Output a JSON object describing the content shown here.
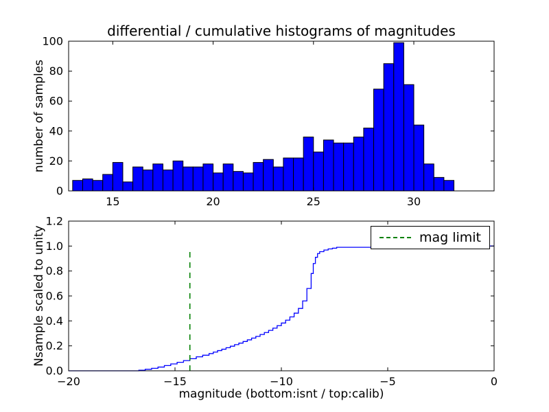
{
  "figure": {
    "background": "#ffffff"
  },
  "chart_data": [
    {
      "type": "bar",
      "title": "differential / cumulative histograms of magnitudes",
      "ylabel": "number of samples",
      "xlabel": "",
      "bar_color": "#0000ff",
      "bar_edge_color": "#000000",
      "bin_start": 13.0,
      "bin_width": 0.5,
      "values": [
        7,
        8,
        7,
        11,
        19,
        6,
        16,
        14,
        18,
        14,
        20,
        16,
        16,
        18,
        12,
        18,
        13,
        12,
        19,
        21,
        16,
        22,
        22,
        36,
        26,
        34,
        32,
        32,
        36,
        42,
        68,
        85,
        99,
        71,
        44,
        18,
        9,
        7
      ],
      "xlim": [
        12.8,
        34.0
      ],
      "ylim": [
        0,
        100
      ],
      "grid": false,
      "xticks": {
        "values": [
          15,
          20,
          25,
          30
        ],
        "labels": [
          "15",
          "20",
          "25",
          "30"
        ]
      },
      "yticks": {
        "values": [
          0,
          20,
          40,
          60,
          80,
          100
        ],
        "labels": [
          "0",
          "20",
          "40",
          "60",
          "80",
          "100"
        ]
      }
    },
    {
      "type": "line",
      "title": "",
      "ylabel": "Nsample scaled to unity",
      "xlabel": "magnitude (bottom:isnt / top:calib)",
      "line_color": "#0000ff",
      "xlim": [
        -20,
        0
      ],
      "ylim": [
        0,
        1.2
      ],
      "grid": false,
      "xticks": {
        "values": [
          -20,
          -15,
          -10,
          -5,
          0
        ],
        "labels": [
          "−20",
          "−15",
          "−10",
          "−5",
          "0"
        ]
      },
      "yticks": {
        "values": [
          0,
          0.2,
          0.4,
          0.6,
          0.8,
          1.0,
          1.2
        ],
        "labels": [
          "0.0",
          "0.2",
          "0.4",
          "0.6",
          "0.8",
          "1.0",
          "1.2"
        ]
      },
      "step_points": [
        [
          -16.7,
          0.005
        ],
        [
          -16.4,
          0.012
        ],
        [
          -16.1,
          0.02
        ],
        [
          -15.8,
          0.03
        ],
        [
          -15.5,
          0.042
        ],
        [
          -15.2,
          0.055
        ],
        [
          -14.9,
          0.068
        ],
        [
          -14.6,
          0.082
        ],
        [
          -14.3,
          0.097
        ],
        [
          -14.0,
          0.112
        ],
        [
          -13.7,
          0.125
        ],
        [
          -13.4,
          0.138
        ],
        [
          -13.2,
          0.15
        ],
        [
          -13.0,
          0.162
        ],
        [
          -12.8,
          0.173
        ],
        [
          -12.6,
          0.185
        ],
        [
          -12.4,
          0.197
        ],
        [
          -12.2,
          0.21
        ],
        [
          -12.0,
          0.222
        ],
        [
          -11.8,
          0.235
        ],
        [
          -11.6,
          0.248
        ],
        [
          -11.4,
          0.262
        ],
        [
          -11.2,
          0.276
        ],
        [
          -11.0,
          0.291
        ],
        [
          -10.8,
          0.307
        ],
        [
          -10.6,
          0.324
        ],
        [
          -10.4,
          0.342
        ],
        [
          -10.2,
          0.362
        ],
        [
          -10.0,
          0.383
        ],
        [
          -9.8,
          0.406
        ],
        [
          -9.6,
          0.432
        ],
        [
          -9.4,
          0.462
        ],
        [
          -9.2,
          0.5
        ],
        [
          -9.0,
          0.56
        ],
        [
          -8.8,
          0.66
        ],
        [
          -8.6,
          0.78
        ],
        [
          -8.5,
          0.86
        ],
        [
          -8.4,
          0.91
        ],
        [
          -8.3,
          0.94
        ],
        [
          -8.2,
          0.955
        ],
        [
          -8.0,
          0.968
        ],
        [
          -7.8,
          0.977
        ],
        [
          -7.6,
          0.983
        ],
        [
          -7.4,
          0.99
        ],
        [
          -1.3,
          1.0
        ]
      ],
      "vline": {
        "x": -14.3,
        "y_top": 0.96,
        "color": "#008000",
        "style": "dashed",
        "label": "mag limit"
      },
      "legend": {
        "position": "upper right",
        "entries": [
          "mag limit"
        ]
      }
    }
  ]
}
